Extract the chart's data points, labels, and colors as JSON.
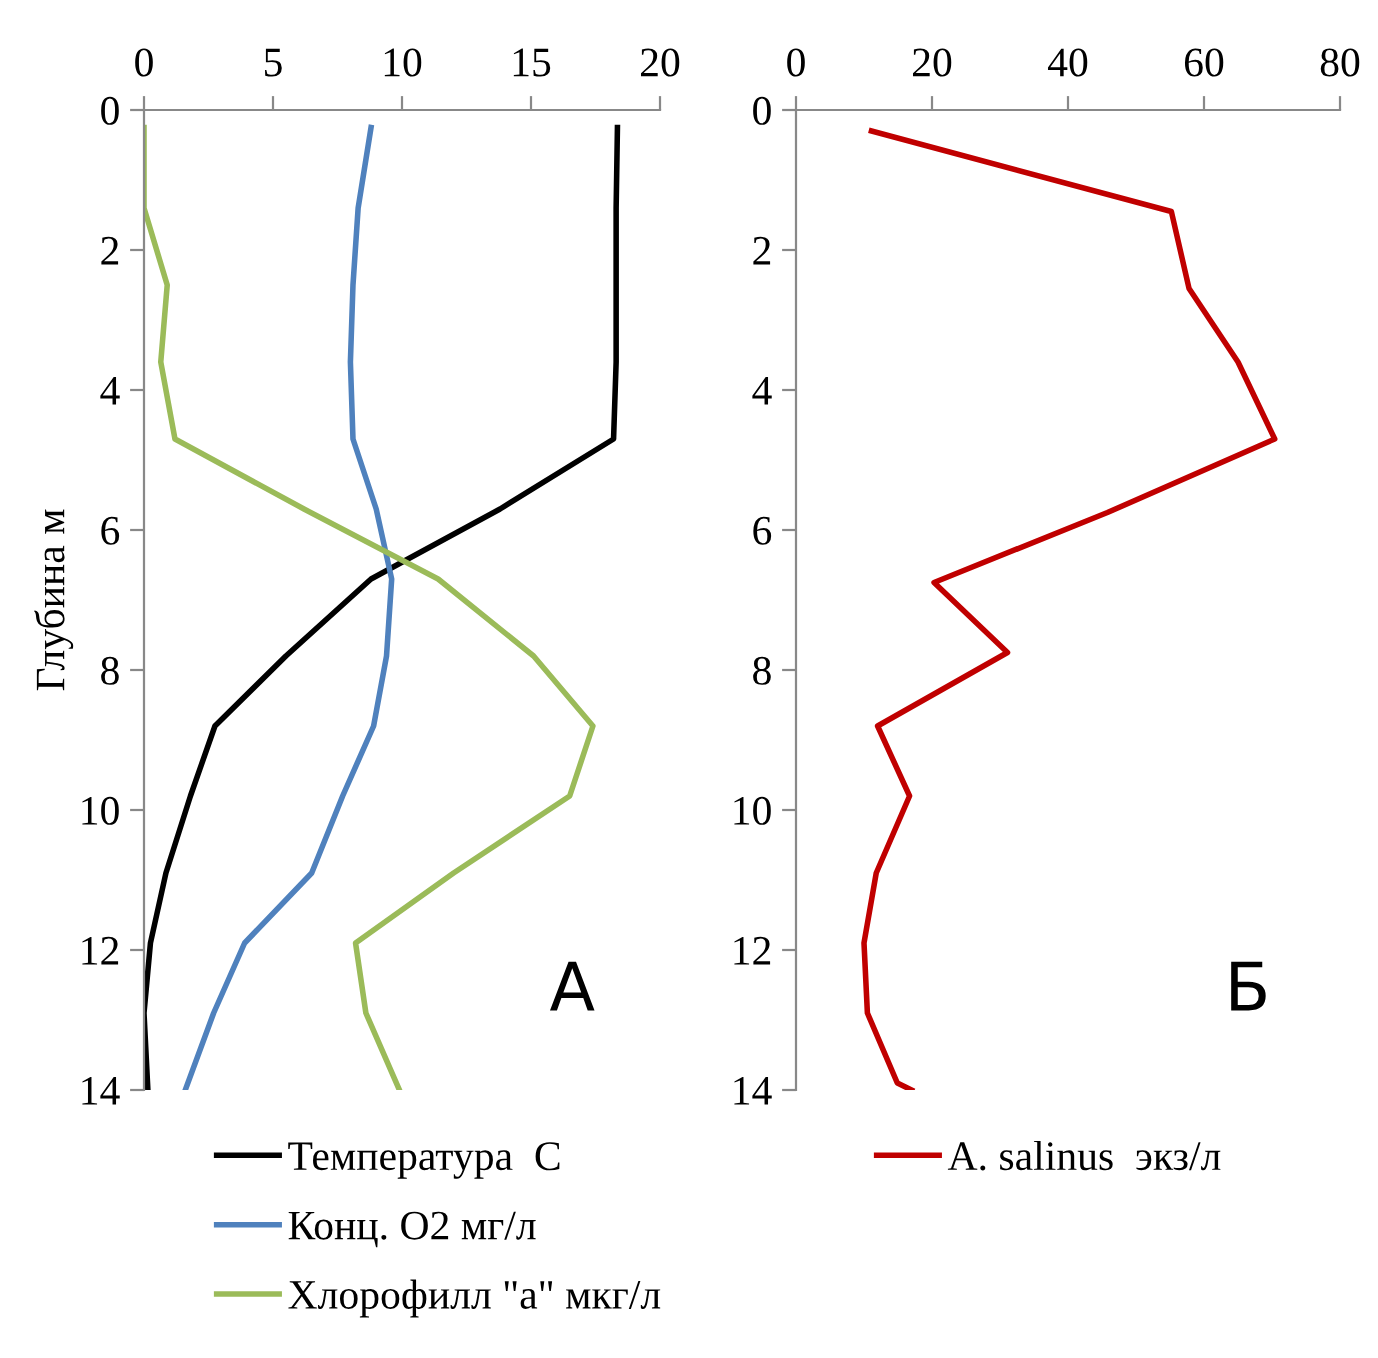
{
  "chart_data": [
    {
      "type": "line",
      "ylabel": "Глубина м",
      "xlim": [
        0,
        20
      ],
      "xticks": [
        0,
        5,
        10,
        15,
        20
      ],
      "ylim": [
        14,
        0
      ],
      "yticks": [
        0,
        2,
        4,
        6,
        8,
        10,
        12,
        14
      ],
      "grid": false,
      "legend": "bottom",
      "annotations": [
        "А"
      ],
      "series": [
        {
          "name": "Температура  С",
          "color": "#000000",
          "x": [
            18.35,
            18.3,
            18.3,
            18.3,
            18.2,
            13.8,
            8.8,
            5.5,
            2.75,
            1.8,
            0.85,
            0.25,
            0,
            0.15
          ],
          "values": [
            0.25,
            1.4,
            2.5,
            3.6,
            4.7,
            5.7,
            6.7,
            7.8,
            8.8,
            9.8,
            10.9,
            11.9,
            12.9,
            14
          ]
        },
        {
          "name": "Конц. О2 мг/л",
          "color": "#4f81bd",
          "x": [
            8.8,
            8.3,
            8.1,
            8.0,
            8.1,
            9.0,
            9.6,
            9.4,
            8.9,
            7.7,
            6.5,
            3.9,
            2.7,
            1.6
          ],
          "values": [
            0.25,
            1.4,
            2.5,
            3.6,
            4.7,
            5.7,
            6.7,
            7.8,
            8.8,
            9.8,
            10.9,
            11.9,
            12.9,
            14
          ]
        },
        {
          "name": "Хлорофилл \"а\" мкг/л",
          "color": "#9bbb59",
          "x": [
            0,
            0,
            0.9,
            0.65,
            1.2,
            6.2,
            11.4,
            15.1,
            17.4,
            16.5,
            12.0,
            8.2,
            8.6,
            9.9
          ],
          "values": [
            0.25,
            1.4,
            2.5,
            3.6,
            4.7,
            5.7,
            6.7,
            7.8,
            8.8,
            9.8,
            10.9,
            11.9,
            12.9,
            14
          ]
        }
      ]
    },
    {
      "type": "line",
      "xlim": [
        0,
        80
      ],
      "xticks": [
        0,
        20,
        40,
        60,
        80
      ],
      "ylim": [
        14,
        0
      ],
      "yticks": [
        0,
        2,
        4,
        6,
        8,
        10,
        12,
        14
      ],
      "grid": false,
      "legend": "bottom",
      "annotations": [
        "Б"
      ],
      "series": [
        {
          "name": "A. salinus  экз/л",
          "color": "#c00000",
          "x": [
            11.1,
            55.2,
            57.8,
            65.0,
            70.4,
            45.8,
            20.3,
            31.1,
            12.0,
            16.7,
            11.8,
            10.0,
            10.5,
            14.9,
            17.0
          ],
          "values": [
            0.3,
            1.45,
            2.55,
            3.6,
            4.7,
            5.75,
            6.75,
            7.75,
            8.8,
            9.8,
            10.9,
            11.9,
            12.9,
            13.9,
            14
          ]
        }
      ]
    }
  ]
}
